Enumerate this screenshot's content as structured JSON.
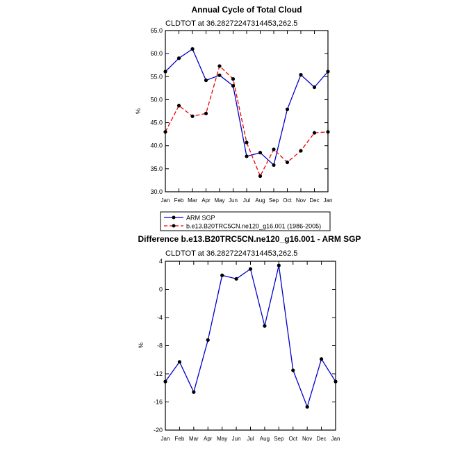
{
  "colors": {
    "obs": "#0000cc",
    "model": "#ee0000",
    "axis": "#000000",
    "marker": "#000000"
  },
  "chart_data": [
    {
      "type": "line",
      "title": "Annual Cycle of Total Cloud",
      "subtitle": "CLDTOT at 36.28272247314453,262.5",
      "xlabel": "",
      "ylabel": "%",
      "ylim": [
        30.0,
        65.0
      ],
      "yticks": [
        "30.0",
        "35.0",
        "40.0",
        "45.0",
        "50.0",
        "55.0",
        "60.0",
        "65.0"
      ],
      "ytick_values": [
        30,
        35,
        40,
        45,
        50,
        55,
        60,
        65
      ],
      "categories": [
        "Jan",
        "Feb",
        "Mar",
        "Apr",
        "May",
        "Jun",
        "Jul",
        "Aug",
        "Sep",
        "Oct",
        "Nov",
        "Dec",
        "Jan"
      ],
      "series": [
        {
          "name": "ARM SGP",
          "style": "solid",
          "color": "#0000cc",
          "values": [
            56.1,
            59.0,
            61.0,
            54.2,
            55.3,
            53.0,
            37.7,
            38.5,
            35.8,
            47.9,
            55.4,
            52.7,
            56.1
          ]
        },
        {
          "name": "b.e13.B20TRC5CN.ne120_g16.001 (1986-2005)",
          "style": "dashed",
          "color": "#ee0000",
          "values": [
            43.0,
            48.7,
            46.4,
            47.0,
            57.3,
            54.5,
            40.7,
            33.4,
            39.2,
            36.4,
            38.9,
            42.8,
            43.0
          ]
        }
      ],
      "legend": {
        "position": "bottom"
      }
    },
    {
      "type": "line",
      "title": "Difference b.e13.B20TRC5CN.ne120_g16.001 - ARM SGP",
      "subtitle": "CLDTOT at 36.28272247314453,262.5",
      "xlabel": "",
      "ylabel": "%",
      "ylim": [
        -20,
        4
      ],
      "yticks": [
        "-20",
        "-16",
        "-12",
        "-8",
        "-4",
        "0",
        "4"
      ],
      "ytick_values": [
        -20,
        -16,
        -12,
        -8,
        -4,
        0,
        4
      ],
      "categories": [
        "Jan",
        "Feb",
        "Mar",
        "Apr",
        "May",
        "Jun",
        "Jul",
        "Aug",
        "Sep",
        "Oct",
        "Nov",
        "Dec",
        "Jan"
      ],
      "series": [
        {
          "name": "Difference",
          "style": "solid",
          "color": "#0000cc",
          "values": [
            -13.1,
            -10.3,
            -14.6,
            -7.2,
            2.0,
            1.5,
            2.9,
            -5.2,
            3.4,
            -11.5,
            -16.7,
            -9.9,
            -13.1
          ]
        }
      ]
    }
  ]
}
